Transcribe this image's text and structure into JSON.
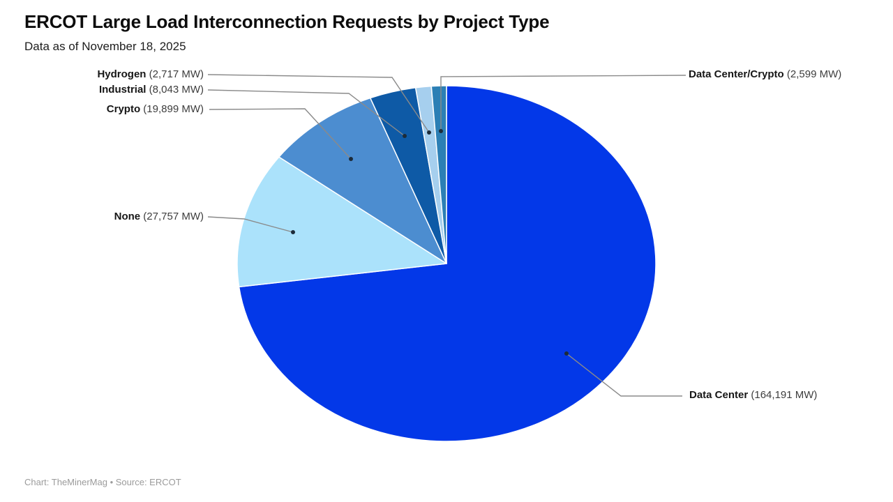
{
  "page": {
    "title": "ERCOT Large Load Interconnection Requests by Project Type",
    "subtitle": "Data as of November 18, 2025",
    "footer": "Chart: TheMinerMag • Source: ERCOT"
  },
  "chart_data": {
    "type": "pie",
    "title": "ERCOT Large Load Interconnection Requests by Project Type",
    "subtitle": "Data as of November 18, 2025",
    "unit": "MW",
    "direction": "clockwise",
    "start_angle": "12 o'clock",
    "legend_position": "callout labels with leader lines",
    "slices": [
      {
        "name": "Data Center",
        "value_mw": 164191,
        "label_value": "(164,191 MW)",
        "color": "#0338e8"
      },
      {
        "name": "None",
        "value_mw": 27757,
        "label_value": "(27,757 MW)",
        "color": "#abe2fb"
      },
      {
        "name": "Crypto",
        "value_mw": 19899,
        "label_value": "(19,899 MW)",
        "color": "#4c8dd0"
      },
      {
        "name": "Industrial",
        "value_mw": 8043,
        "label_value": "(8,043 MW)",
        "color": "#0e5aa6"
      },
      {
        "name": "Hydrogen",
        "value_mw": 2717,
        "label_value": "(2,717 MW)",
        "color": "#a6cfee"
      },
      {
        "name": "Data Center/Crypto",
        "value_mw": 2599,
        "label_value": "(2,599 MW)",
        "color": "#2b7fb5"
      }
    ],
    "credit": "Chart: TheMinerMag",
    "source": "Source: ERCOT"
  }
}
